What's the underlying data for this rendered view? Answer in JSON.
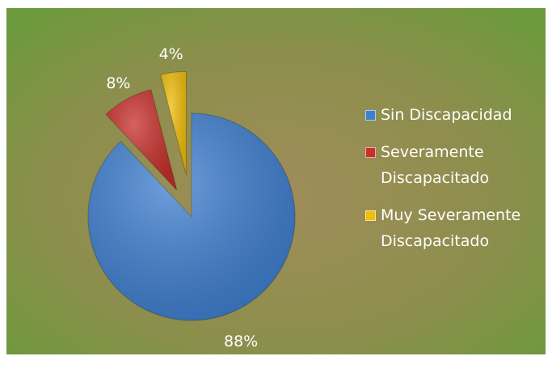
{
  "chart_data": {
    "type": "pie",
    "categories": [
      "Sin Discapacidad",
      "Severamente Discapacitado",
      "Muy Severamente Discapacitado"
    ],
    "values": [
      88,
      8,
      4
    ],
    "value_labels": [
      "88%",
      "8%",
      "4%"
    ],
    "colors": [
      "#3f7fd0",
      "#c7302c",
      "#f2be0c"
    ]
  }
}
